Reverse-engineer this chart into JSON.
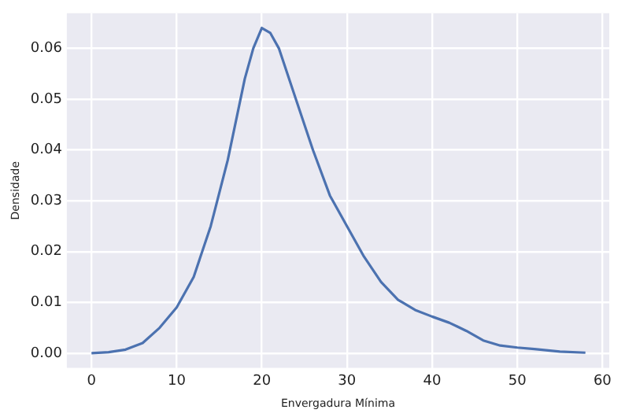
{
  "chart_data": {
    "type": "line",
    "xlabel": "Envergadura Mínima",
    "ylabel": "Densidade",
    "x": [
      0,
      2,
      4,
      6,
      8,
      10,
      12,
      14,
      16,
      18,
      19,
      20,
      21,
      22,
      24,
      26,
      28,
      30,
      32,
      34,
      36,
      38,
      40,
      42,
      43,
      44,
      46,
      48,
      50,
      52,
      55,
      58
    ],
    "series": [
      {
        "color": "#4c72b0",
        "values": [
          0,
          0.0002,
          0.0007,
          0.002,
          0.005,
          0.009,
          0.015,
          0.025,
          0.038,
          0.054,
          0.06,
          0.064,
          0.063,
          0.06,
          0.05,
          0.04,
          0.031,
          0.025,
          0.019,
          0.014,
          0.0105,
          0.0085,
          0.0072,
          0.006,
          0.0052,
          0.0044,
          0.0025,
          0.0015,
          0.0011,
          0.0008,
          0.0003,
          0.0001
        ]
      }
    ],
    "xlim": [
      -2.9,
      60.8
    ],
    "xticks": [
      0,
      10,
      20,
      30,
      40,
      50,
      60
    ],
    "ylim": [
      -0.0029,
      0.0669
    ],
    "yticks": [
      {
        "value": 0,
        "label": "0.00"
      },
      {
        "value": 0.01,
        "label": "0.01"
      },
      {
        "value": 0.02,
        "label": "0.02"
      },
      {
        "value": 0.03,
        "label": "0.03"
      },
      {
        "value": 0.04,
        "label": "0.04"
      },
      {
        "value": 0.05,
        "label": "0.05"
      },
      {
        "value": 0.06,
        "label": "0.06"
      }
    ],
    "grid": true,
    "legend": false,
    "marker": "none",
    "line_style": "solid"
  }
}
